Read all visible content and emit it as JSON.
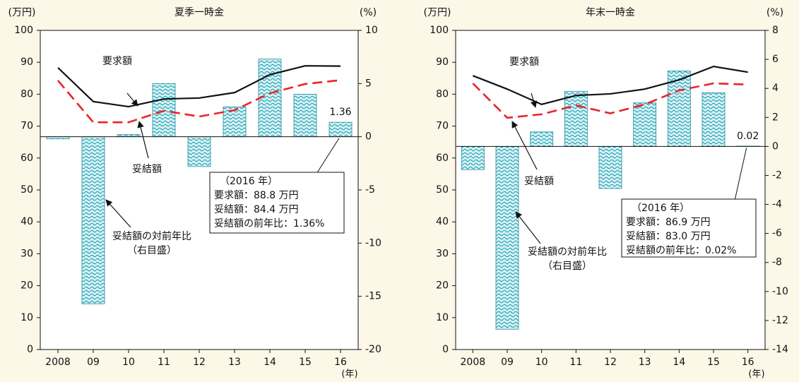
{
  "chart_data": [
    {
      "type": "combo",
      "title": "夏季一時金",
      "y_label": "(万円)",
      "y2_label": "(%)",
      "x_label": "(年)",
      "categories": [
        "2008",
        "09",
        "10",
        "11",
        "12",
        "13",
        "14",
        "15",
        "16"
      ],
      "ylim": [
        0,
        100
      ],
      "yticks": [
        0,
        10,
        20,
        30,
        40,
        50,
        60,
        70,
        80,
        90,
        100
      ],
      "y2lim": [
        -20,
        10
      ],
      "y2ticks": [
        -20,
        -15,
        -10,
        -5,
        0,
        5,
        10
      ],
      "series": [
        {
          "name": "妥結額の対前年比",
          "axis": "y2",
          "mark": "bar",
          "color": "#3fb6c6",
          "values": [
            -0.2,
            -15.7,
            0.2,
            5.0,
            -2.8,
            2.8,
            7.3,
            4.0,
            1.36
          ]
        },
        {
          "name": "要求額",
          "mark": "line",
          "color": "#111111",
          "values": [
            88.3,
            77.7,
            76.1,
            78.5,
            78.8,
            80.5,
            86.1,
            88.9,
            88.8
          ]
        },
        {
          "name": "妥結額",
          "mark": "dashed",
          "color": "#e8242a",
          "values": [
            84.3,
            71.2,
            71.2,
            74.8,
            73.0,
            75.0,
            80.3,
            83.2,
            84.4
          ]
        }
      ],
      "axis_note": "（右目盛）",
      "annotation_box": [
        "（2016 年）",
        "要求額：88.8 万円",
        "妥結額：84.4 万円",
        "妥結額の前年比：1.36%"
      ]
    },
    {
      "type": "combo",
      "title": "年末一時金",
      "y_label": "(万円)",
      "y2_label": "(%)",
      "x_label": "(年)",
      "categories": [
        "2008",
        "09",
        "10",
        "11",
        "12",
        "13",
        "14",
        "15",
        "16"
      ],
      "ylim": [
        0,
        100
      ],
      "yticks": [
        0,
        10,
        20,
        30,
        40,
        50,
        60,
        70,
        80,
        90,
        100
      ],
      "y2lim": [
        -14,
        8
      ],
      "y2ticks": [
        -14,
        -12,
        -10,
        -8,
        -6,
        -4,
        -2,
        0,
        2,
        4,
        6,
        8
      ],
      "series": [
        {
          "name": "妥結額の対前年比",
          "axis": "y2",
          "mark": "bar",
          "color": "#3fb6c6",
          "values": [
            -1.6,
            -12.6,
            1.0,
            3.8,
            -2.9,
            3.0,
            5.2,
            3.7,
            0.02
          ]
        },
        {
          "name": "要求額",
          "mark": "line",
          "color": "#111111",
          "values": [
            85.8,
            81.6,
            76.8,
            79.6,
            80.1,
            81.6,
            84.5,
            88.7,
            86.9
          ]
        },
        {
          "name": "妥結額",
          "mark": "dashed",
          "color": "#e8242a",
          "values": [
            83.4,
            72.6,
            73.7,
            76.5,
            74.0,
            76.8,
            81.2,
            83.4,
            83.0
          ]
        }
      ],
      "axis_note": "（右目盛）",
      "annotation_box": [
        "（2016 年）",
        "要求額：86.9 万円",
        "妥結額：83.0 万円",
        "妥結額の前年比：0.02%"
      ]
    }
  ]
}
